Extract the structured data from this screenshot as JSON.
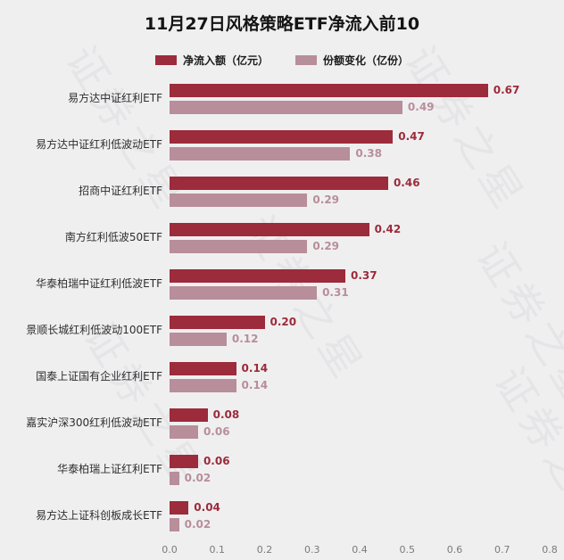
{
  "title": "11月27日风格策略ETF净流入前10",
  "watermark": "证券之星",
  "legend": [
    {
      "label": "净流入额（亿元）",
      "color": "#9c2b3b"
    },
    {
      "label": "份额变化（亿份）",
      "color": "#b78e9a"
    }
  ],
  "chart_data": {
    "type": "bar",
    "orientation": "horizontal",
    "title": "11月27日风格策略ETF净流入前10",
    "categories": [
      "易方达中证红利ETF",
      "易方达中证红利低波动ETF",
      "招商中证红利ETF",
      "南方红利低波50ETF",
      "华泰柏瑞中证红利低波ETF",
      "景顺长城红利低波动100ETF",
      "国泰上证国有企业红利ETF",
      "嘉实沪深300红利低波动ETF",
      "华泰柏瑞上证红利ETF",
      "易方达上证科创板成长ETF"
    ],
    "series": [
      {
        "name": "净流入额（亿元）",
        "color": "#9c2b3b",
        "values": [
          0.67,
          0.47,
          0.46,
          0.42,
          0.37,
          0.2,
          0.14,
          0.08,
          0.06,
          0.04
        ]
      },
      {
        "name": "份额变化（亿份）",
        "color": "#b78e9a",
        "values": [
          0.49,
          0.38,
          0.29,
          0.29,
          0.31,
          0.12,
          0.14,
          0.06,
          0.02,
          0.02
        ]
      }
    ],
    "xlim": [
      0,
      0.8
    ],
    "xticks": [
      "0.0",
      "0.1",
      "0.2",
      "0.3",
      "0.4",
      "0.5",
      "0.6",
      "0.7",
      "0.8"
    ],
    "grid": false,
    "legend_position": "top"
  }
}
